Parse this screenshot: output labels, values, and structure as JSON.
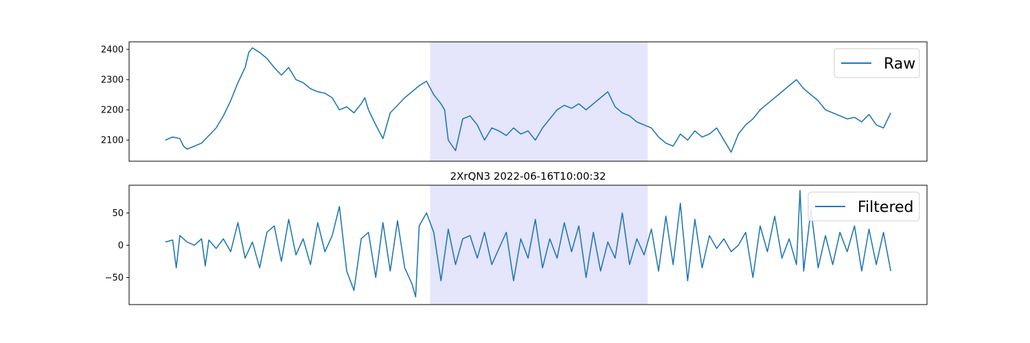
{
  "colors": {
    "line": "#1f77b4",
    "highlight": "#e5e5fc",
    "frame": "#000000",
    "legend_border": "#cccccc"
  },
  "highlight_window": {
    "x_start": 0.365,
    "x_end": 0.665
  },
  "chart_data": [
    {
      "type": "line",
      "title": "",
      "xlabel": "",
      "ylabel": "",
      "x_ticks_shown": false,
      "xlim": [
        -0.05,
        1.05
      ],
      "ylim": [
        2030,
        2425
      ],
      "yticks": [
        2100,
        2200,
        2300,
        2400
      ],
      "ytick_labels": [
        "2100",
        "2200",
        "2300",
        "2400"
      ],
      "legend_position": "top-right",
      "grid": false,
      "series": [
        {
          "name": "Raw",
          "points": [
            [
              0,
              2100
            ],
            [
              0.01,
              2110
            ],
            [
              0.02,
              2105
            ],
            [
              0.025,
              2080
            ],
            [
              0.03,
              2070
            ],
            [
              0.04,
              2080
            ],
            [
              0.05,
              2090
            ],
            [
              0.06,
              2115
            ],
            [
              0.07,
              2140
            ],
            [
              0.08,
              2180
            ],
            [
              0.09,
              2230
            ],
            [
              0.1,
              2290
            ],
            [
              0.11,
              2340
            ],
            [
              0.115,
              2390
            ],
            [
              0.12,
              2405
            ],
            [
              0.13,
              2390
            ],
            [
              0.14,
              2370
            ],
            [
              0.15,
              2340
            ],
            [
              0.16,
              2315
            ],
            [
              0.17,
              2340
            ],
            [
              0.18,
              2300
            ],
            [
              0.19,
              2290
            ],
            [
              0.2,
              2270
            ],
            [
              0.21,
              2260
            ],
            [
              0.22,
              2255
            ],
            [
              0.23,
              2240
            ],
            [
              0.24,
              2200
            ],
            [
              0.25,
              2210
            ],
            [
              0.26,
              2190
            ],
            [
              0.27,
              2220
            ],
            [
              0.275,
              2240
            ],
            [
              0.28,
              2200
            ],
            [
              0.29,
              2150
            ],
            [
              0.3,
              2105
            ],
            [
              0.31,
              2190
            ],
            [
              0.32,
              2215
            ],
            [
              0.33,
              2240
            ],
            [
              0.34,
              2260
            ],
            [
              0.35,
              2280
            ],
            [
              0.36,
              2295
            ],
            [
              0.37,
              2250
            ],
            [
              0.38,
              2220
            ],
            [
              0.385,
              2200
            ],
            [
              0.39,
              2100
            ],
            [
              0.4,
              2065
            ],
            [
              0.41,
              2170
            ],
            [
              0.42,
              2180
            ],
            [
              0.43,
              2150
            ],
            [
              0.44,
              2100
            ],
            [
              0.45,
              2140
            ],
            [
              0.46,
              2130
            ],
            [
              0.47,
              2115
            ],
            [
              0.48,
              2140
            ],
            [
              0.49,
              2120
            ],
            [
              0.5,
              2130
            ],
            [
              0.51,
              2100
            ],
            [
              0.52,
              2140
            ],
            [
              0.53,
              2170
            ],
            [
              0.54,
              2200
            ],
            [
              0.55,
              2215
            ],
            [
              0.56,
              2205
            ],
            [
              0.57,
              2220
            ],
            [
              0.58,
              2200
            ],
            [
              0.59,
              2220
            ],
            [
              0.6,
              2240
            ],
            [
              0.61,
              2260
            ],
            [
              0.62,
              2210
            ],
            [
              0.63,
              2190
            ],
            [
              0.64,
              2180
            ],
            [
              0.65,
              2160
            ],
            [
              0.66,
              2150
            ],
            [
              0.67,
              2140
            ],
            [
              0.68,
              2110
            ],
            [
              0.69,
              2090
            ],
            [
              0.7,
              2080
            ],
            [
              0.71,
              2120
            ],
            [
              0.72,
              2100
            ],
            [
              0.73,
              2130
            ],
            [
              0.74,
              2110
            ],
            [
              0.75,
              2120
            ],
            [
              0.76,
              2140
            ],
            [
              0.77,
              2100
            ],
            [
              0.78,
              2060
            ],
            [
              0.79,
              2120
            ],
            [
              0.8,
              2150
            ],
            [
              0.81,
              2170
            ],
            [
              0.82,
              2200
            ],
            [
              0.83,
              2220
            ],
            [
              0.84,
              2240
            ],
            [
              0.85,
              2260
            ],
            [
              0.86,
              2280
            ],
            [
              0.87,
              2300
            ],
            [
              0.88,
              2270
            ],
            [
              0.89,
              2250
            ],
            [
              0.9,
              2230
            ],
            [
              0.91,
              2200
            ],
            [
              0.92,
              2190
            ],
            [
              0.93,
              2180
            ],
            [
              0.94,
              2170
            ],
            [
              0.95,
              2175
            ],
            [
              0.96,
              2160
            ],
            [
              0.97,
              2185
            ],
            [
              0.98,
              2150
            ],
            [
              0.99,
              2140
            ],
            [
              1.0,
              2190
            ]
          ]
        }
      ]
    },
    {
      "type": "line",
      "title": "2XrQN3 2022-06-16T10:00:32",
      "xlabel": "",
      "ylabel": "",
      "x_ticks_shown": false,
      "xlim": [
        -0.05,
        1.05
      ],
      "ylim": [
        -92,
        93
      ],
      "yticks": [
        -50,
        0,
        50
      ],
      "ytick_labels": [
        "−50",
        "0",
        "50"
      ],
      "legend_position": "top-right",
      "grid": false,
      "series": [
        {
          "name": "Filtered",
          "points": [
            [
              0,
              5
            ],
            [
              0.01,
              8
            ],
            [
              0.015,
              -35
            ],
            [
              0.02,
              15
            ],
            [
              0.03,
              5
            ],
            [
              0.04,
              0
            ],
            [
              0.05,
              10
            ],
            [
              0.055,
              -32
            ],
            [
              0.06,
              8
            ],
            [
              0.07,
              -5
            ],
            [
              0.08,
              10
            ],
            [
              0.09,
              -10
            ],
            [
              0.1,
              35
            ],
            [
              0.11,
              -20
            ],
            [
              0.12,
              5
            ],
            [
              0.13,
              -35
            ],
            [
              0.14,
              20
            ],
            [
              0.15,
              30
            ],
            [
              0.16,
              -25
            ],
            [
              0.17,
              40
            ],
            [
              0.18,
              -15
            ],
            [
              0.19,
              10
            ],
            [
              0.2,
              -30
            ],
            [
              0.21,
              35
            ],
            [
              0.22,
              -10
            ],
            [
              0.23,
              15
            ],
            [
              0.24,
              60
            ],
            [
              0.25,
              -40
            ],
            [
              0.26,
              -70
            ],
            [
              0.27,
              10
            ],
            [
              0.28,
              20
            ],
            [
              0.29,
              -50
            ],
            [
              0.3,
              35
            ],
            [
              0.31,
              -40
            ],
            [
              0.32,
              38
            ],
            [
              0.33,
              -35
            ],
            [
              0.34,
              -60
            ],
            [
              0.345,
              -80
            ],
            [
              0.35,
              30
            ],
            [
              0.36,
              50
            ],
            [
              0.37,
              20
            ],
            [
              0.38,
              -55
            ],
            [
              0.39,
              25
            ],
            [
              0.4,
              -30
            ],
            [
              0.41,
              10
            ],
            [
              0.42,
              15
            ],
            [
              0.43,
              -20
            ],
            [
              0.44,
              20
            ],
            [
              0.45,
              -30
            ],
            [
              0.46,
              -5
            ],
            [
              0.47,
              20
            ],
            [
              0.48,
              -55
            ],
            [
              0.49,
              10
            ],
            [
              0.5,
              -20
            ],
            [
              0.51,
              40
            ],
            [
              0.52,
              -35
            ],
            [
              0.53,
              10
            ],
            [
              0.54,
              -20
            ],
            [
              0.55,
              35
            ],
            [
              0.56,
              -10
            ],
            [
              0.57,
              30
            ],
            [
              0.58,
              -50
            ],
            [
              0.59,
              20
            ],
            [
              0.6,
              -40
            ],
            [
              0.61,
              5
            ],
            [
              0.62,
              -20
            ],
            [
              0.63,
              50
            ],
            [
              0.64,
              -30
            ],
            [
              0.65,
              10
            ],
            [
              0.66,
              -15
            ],
            [
              0.67,
              25
            ],
            [
              0.68,
              -40
            ],
            [
              0.69,
              45
            ],
            [
              0.7,
              -30
            ],
            [
              0.71,
              65
            ],
            [
              0.72,
              -55
            ],
            [
              0.73,
              40
            ],
            [
              0.74,
              -35
            ],
            [
              0.75,
              15
            ],
            [
              0.76,
              -5
            ],
            [
              0.77,
              10
            ],
            [
              0.78,
              -10
            ],
            [
              0.79,
              0
            ],
            [
              0.8,
              20
            ],
            [
              0.81,
              -50
            ],
            [
              0.82,
              30
            ],
            [
              0.83,
              -10
            ],
            [
              0.84,
              45
            ],
            [
              0.85,
              -20
            ],
            [
              0.86,
              10
            ],
            [
              0.87,
              -30
            ],
            [
              0.875,
              85
            ],
            [
              0.88,
              -40
            ],
            [
              0.89,
              55
            ],
            [
              0.9,
              -35
            ],
            [
              0.91,
              15
            ],
            [
              0.92,
              -30
            ],
            [
              0.93,
              20
            ],
            [
              0.94,
              -10
            ],
            [
              0.95,
              30
            ],
            [
              0.96,
              -40
            ],
            [
              0.97,
              25
            ],
            [
              0.98,
              -30
            ],
            [
              0.99,
              20
            ],
            [
              1.0,
              -40
            ]
          ]
        }
      ]
    }
  ]
}
